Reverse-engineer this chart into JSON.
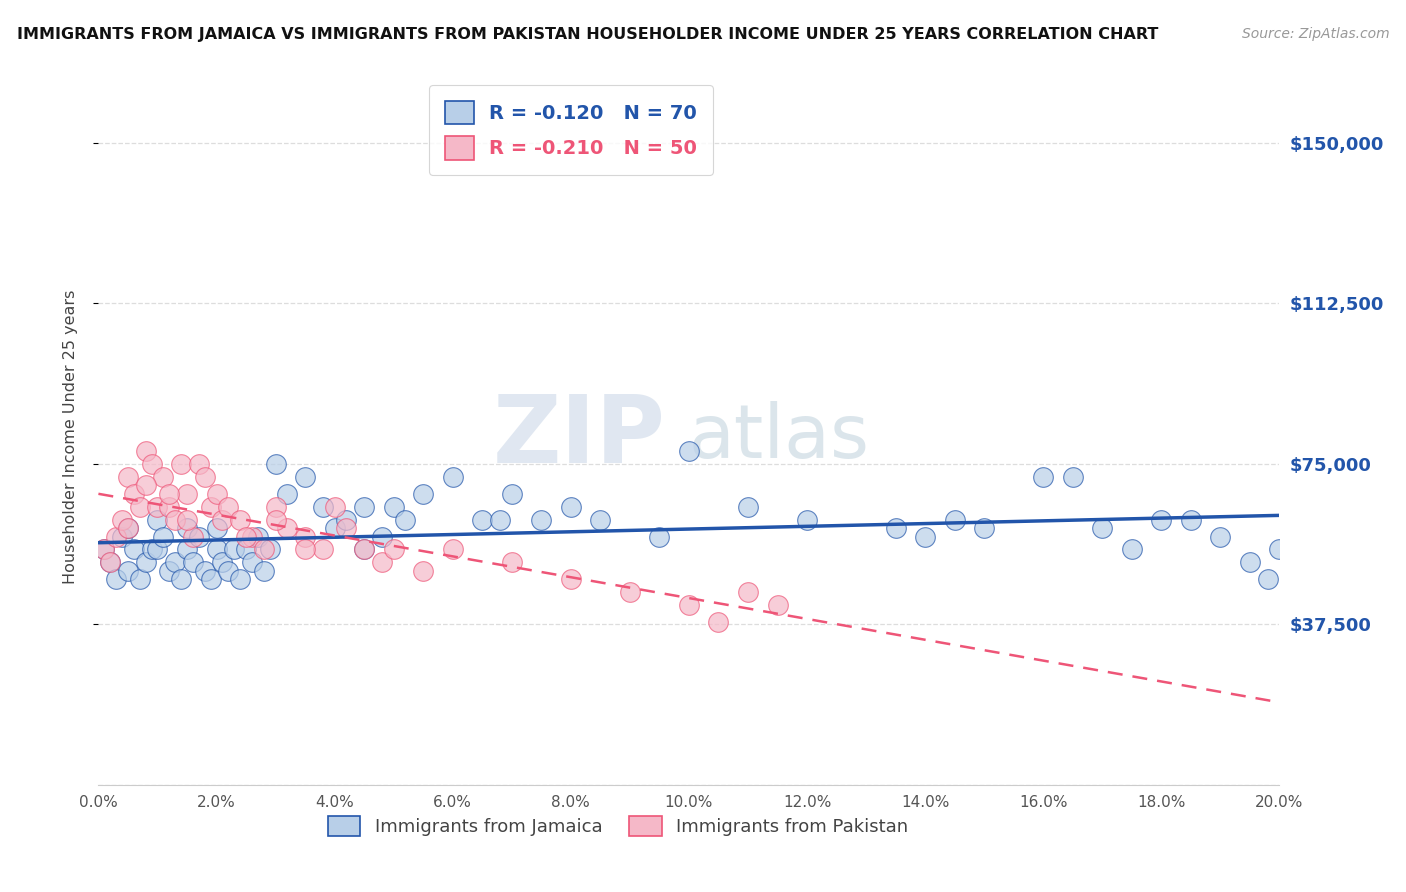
{
  "title": "IMMIGRANTS FROM JAMAICA VS IMMIGRANTS FROM PAKISTAN HOUSEHOLDER INCOME UNDER 25 YEARS CORRELATION CHART",
  "source": "Source: ZipAtlas.com",
  "ylabel": "Householder Income Under 25 years",
  "ytick_labels": [
    "$37,500",
    "$75,000",
    "$112,500",
    "$150,000"
  ],
  "ytick_vals": [
    37500,
    75000,
    112500,
    150000
  ],
  "ylim": [
    0,
    162500
  ],
  "xlim": [
    0.0,
    20.0
  ],
  "watermark_zip": "ZIP",
  "watermark_atlas": "atlas",
  "legend_jamaica": "R = -0.120   N = 70",
  "legend_pakistan": "R = -0.210   N = 50",
  "color_jamaica": "#b8cfe8",
  "color_pakistan": "#f5b8c8",
  "line_color_jamaica": "#2255aa",
  "line_color_pakistan": "#ee5577",
  "xlabel_vals": [
    0.0,
    2.0,
    4.0,
    6.0,
    8.0,
    10.0,
    12.0,
    14.0,
    16.0,
    18.0,
    20.0
  ],
  "jamaica_x": [
    0.1,
    0.2,
    0.3,
    0.4,
    0.5,
    0.5,
    0.6,
    0.7,
    0.8,
    0.9,
    1.0,
    1.0,
    1.1,
    1.2,
    1.3,
    1.4,
    1.5,
    1.5,
    1.6,
    1.7,
    1.8,
    1.9,
    2.0,
    2.0,
    2.1,
    2.2,
    2.3,
    2.4,
    2.5,
    2.6,
    2.7,
    2.8,
    2.9,
    3.0,
    3.2,
    3.5,
    3.8,
    4.0,
    4.2,
    4.5,
    4.8,
    5.0,
    5.5,
    6.0,
    6.5,
    7.0,
    7.5,
    8.0,
    8.5,
    9.5,
    10.0,
    11.0,
    12.0,
    13.5,
    14.0,
    15.0,
    16.0,
    17.0,
    18.0,
    19.0,
    19.5,
    20.0,
    14.5,
    16.5,
    18.5,
    17.5,
    19.8,
    4.5,
    5.2,
    6.8
  ],
  "jamaica_y": [
    55000,
    52000,
    48000,
    58000,
    60000,
    50000,
    55000,
    48000,
    52000,
    55000,
    62000,
    55000,
    58000,
    50000,
    52000,
    48000,
    60000,
    55000,
    52000,
    58000,
    50000,
    48000,
    55000,
    60000,
    52000,
    50000,
    55000,
    48000,
    55000,
    52000,
    58000,
    50000,
    55000,
    75000,
    68000,
    72000,
    65000,
    60000,
    62000,
    65000,
    58000,
    65000,
    68000,
    72000,
    62000,
    68000,
    62000,
    65000,
    62000,
    58000,
    78000,
    65000,
    62000,
    60000,
    58000,
    60000,
    72000,
    60000,
    62000,
    58000,
    52000,
    55000,
    62000,
    72000,
    62000,
    55000,
    48000,
    55000,
    62000,
    62000
  ],
  "pakistan_x": [
    0.1,
    0.2,
    0.3,
    0.4,
    0.5,
    0.6,
    0.7,
    0.8,
    0.9,
    1.0,
    1.1,
    1.2,
    1.3,
    1.4,
    1.5,
    1.6,
    1.7,
    1.8,
    1.9,
    2.0,
    2.1,
    2.2,
    2.4,
    2.6,
    2.8,
    3.0,
    3.2,
    3.5,
    3.8,
    4.0,
    4.2,
    4.5,
    4.8,
    5.0,
    5.5,
    6.0,
    7.0,
    8.0,
    9.0,
    10.0,
    10.5,
    11.0,
    11.5,
    0.5,
    0.8,
    1.2,
    1.5,
    2.5,
    3.0,
    3.5
  ],
  "pakistan_y": [
    55000,
    52000,
    58000,
    62000,
    72000,
    68000,
    65000,
    78000,
    75000,
    65000,
    72000,
    65000,
    62000,
    75000,
    68000,
    58000,
    75000,
    72000,
    65000,
    68000,
    62000,
    65000,
    62000,
    58000,
    55000,
    65000,
    60000,
    58000,
    55000,
    65000,
    60000,
    55000,
    52000,
    55000,
    50000,
    55000,
    52000,
    48000,
    45000,
    42000,
    38000,
    45000,
    42000,
    60000,
    70000,
    68000,
    62000,
    58000,
    62000,
    55000
  ],
  "background_color": "#ffffff",
  "grid_color": "#dddddd"
}
